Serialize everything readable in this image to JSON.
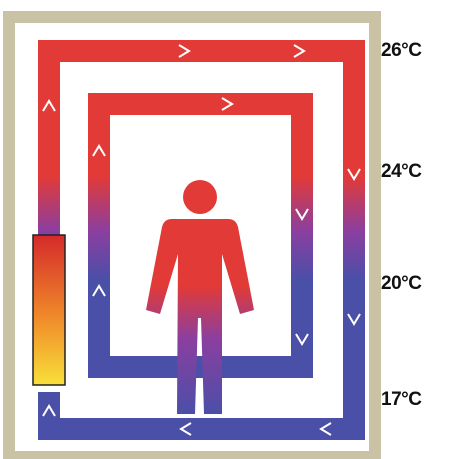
{
  "temperatures": [
    "26°C",
    "24°C",
    "20°C",
    "17°C"
  ],
  "colors": {
    "frame": "#c9c2a4",
    "warm": "#e23a37",
    "cool": "#4a4fa8",
    "transition": "#8a3fa0",
    "heater_top": "#d42a2a",
    "heater_mid": "#f08a2a",
    "heater_bottom": "#f8e03a",
    "chevron": "#ffffff"
  },
  "elements": {
    "figure": "person-icon",
    "heater": "radiator",
    "flow": "convection-flow-arrows"
  }
}
